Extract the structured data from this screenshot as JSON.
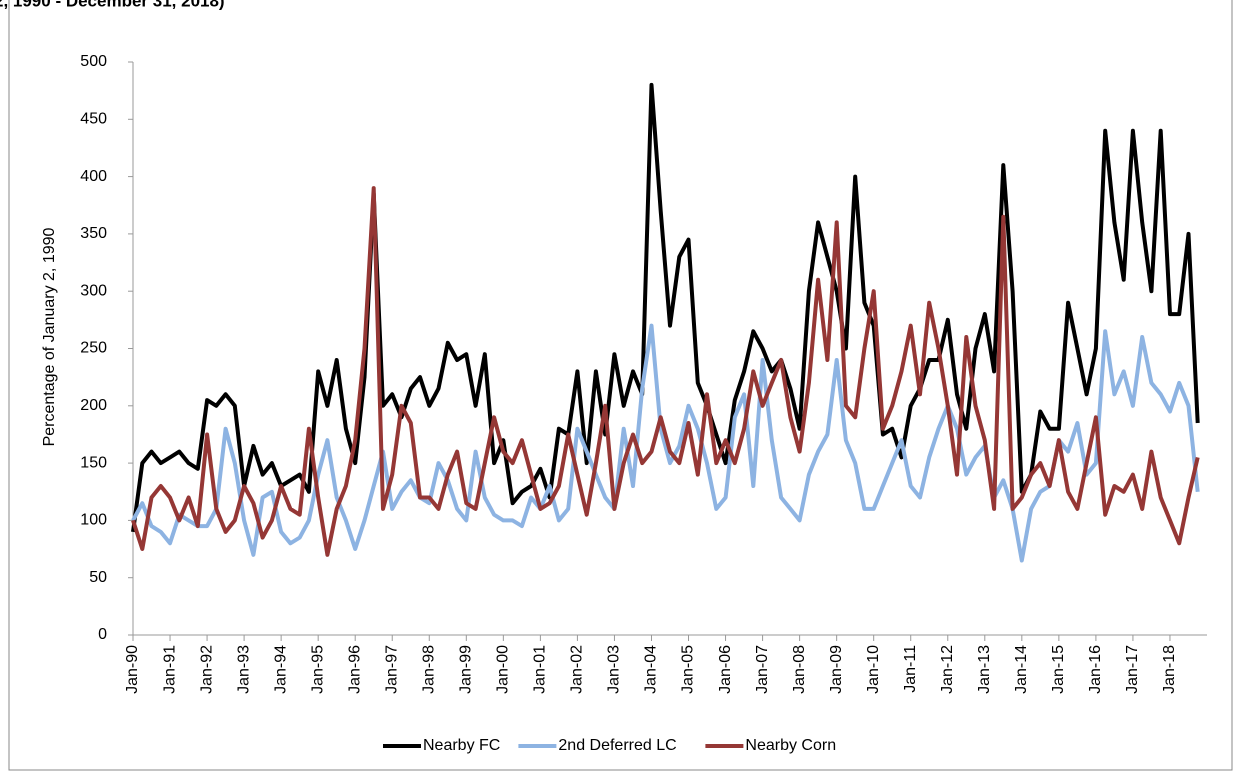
{
  "chart_data": {
    "type": "line",
    "title": "2, 1990 - December 31, 2018)",
    "y_label": "Percentage of January 2, 1990",
    "x": [
      1990,
      1990.25,
      1990.5,
      1990.75,
      1991,
      1991.25,
      1991.5,
      1991.75,
      1992,
      1992.25,
      1992.5,
      1992.75,
      1993,
      1993.25,
      1993.5,
      1993.75,
      1994,
      1994.25,
      1994.5,
      1994.75,
      1995,
      1995.25,
      1995.5,
      1995.75,
      1996,
      1996.25,
      1996.5,
      1996.75,
      1997,
      1997.25,
      1997.5,
      1997.75,
      1998,
      1998.25,
      1998.5,
      1998.75,
      1999,
      1999.25,
      1999.5,
      1999.75,
      2000,
      2000.25,
      2000.5,
      2000.75,
      2001,
      2001.25,
      2001.5,
      2001.75,
      2002,
      2002.25,
      2002.5,
      2002.75,
      2003,
      2003.25,
      2003.5,
      2003.75,
      2004,
      2004.25,
      2004.5,
      2004.75,
      2005,
      2005.25,
      2005.5,
      2005.75,
      2006,
      2006.25,
      2006.5,
      2006.75,
      2007,
      2007.25,
      2007.5,
      2007.75,
      2008,
      2008.25,
      2008.5,
      2008.75,
      2009,
      2009.25,
      2009.5,
      2009.75,
      2010,
      2010.25,
      2010.5,
      2010.75,
      2011,
      2011.25,
      2011.5,
      2011.75,
      2012,
      2012.25,
      2012.5,
      2012.75,
      2013,
      2013.25,
      2013.5,
      2013.75,
      2014,
      2014.25,
      2014.5,
      2014.75,
      2015,
      2015.25,
      2015.5,
      2015.75,
      2016,
      2016.25,
      2016.5,
      2016.75,
      2017,
      2017.25,
      2017.5,
      2017.75,
      2018,
      2018.25,
      2018.5,
      2018.75
    ],
    "series": [
      {
        "name": "Nearby FC",
        "color": "#000000",
        "values": [
          90,
          150,
          160,
          150,
          155,
          160,
          150,
          145,
          205,
          200,
          210,
          200,
          130,
          165,
          140,
          150,
          130,
          135,
          140,
          125,
          230,
          200,
          240,
          180,
          150,
          225,
          385,
          200,
          210,
          190,
          215,
          225,
          200,
          215,
          255,
          240,
          245,
          200,
          245,
          150,
          170,
          115,
          125,
          130,
          145,
          120,
          180,
          175,
          230,
          150,
          230,
          175,
          245,
          200,
          230,
          210,
          480,
          370,
          270,
          330,
          345,
          220,
          200,
          175,
          150,
          205,
          230,
          265,
          250,
          230,
          240,
          215,
          180,
          300,
          360,
          330,
          300,
          250,
          400,
          290,
          270,
          175,
          180,
          155,
          200,
          215,
          240,
          240,
          275,
          210,
          180,
          250,
          280,
          230,
          410,
          300,
          125,
          140,
          195,
          180,
          180,
          290,
          250,
          210,
          250,
          440,
          360,
          310,
          440,
          360,
          300,
          440,
          280,
          280,
          350,
          185
        ]
      },
      {
        "name": "2nd Deferred LC",
        "color": "#8db3e2",
        "values": [
          100,
          115,
          95,
          90,
          80,
          105,
          100,
          95,
          95,
          110,
          180,
          150,
          100,
          70,
          120,
          125,
          90,
          80,
          85,
          100,
          140,
          170,
          120,
          100,
          75,
          100,
          130,
          160,
          110,
          125,
          135,
          120,
          115,
          150,
          135,
          110,
          100,
          160,
          120,
          105,
          100,
          100,
          95,
          120,
          110,
          130,
          100,
          110,
          180,
          160,
          140,
          120,
          110,
          180,
          130,
          215,
          270,
          180,
          150,
          165,
          200,
          180,
          150,
          110,
          120,
          190,
          210,
          130,
          240,
          170,
          120,
          110,
          100,
          140,
          160,
          175,
          240,
          170,
          150,
          110,
          110,
          130,
          150,
          170,
          130,
          120,
          155,
          180,
          200,
          180,
          140,
          155,
          165,
          120,
          135,
          110,
          65,
          110,
          125,
          130,
          170,
          160,
          185,
          140,
          150,
          265,
          210,
          230,
          200,
          260,
          220,
          210,
          195,
          220,
          200,
          125
        ]
      },
      {
        "name": "Nearby Corn",
        "color": "#953735",
        "values": [
          100,
          75,
          120,
          130,
          120,
          100,
          120,
          95,
          175,
          110,
          90,
          100,
          130,
          115,
          85,
          100,
          130,
          110,
          105,
          180,
          120,
          70,
          110,
          130,
          170,
          250,
          390,
          110,
          140,
          200,
          185,
          120,
          120,
          110,
          140,
          160,
          115,
          110,
          150,
          190,
          160,
          150,
          170,
          140,
          110,
          115,
          130,
          175,
          140,
          105,
          150,
          200,
          110,
          150,
          175,
          150,
          160,
          190,
          160,
          150,
          185,
          140,
          210,
          150,
          170,
          150,
          180,
          230,
          200,
          220,
          240,
          190,
          160,
          220,
          310,
          240,
          360,
          200,
          190,
          250,
          300,
          180,
          200,
          230,
          270,
          210,
          290,
          250,
          200,
          140,
          260,
          200,
          170,
          110,
          365,
          110,
          120,
          140,
          150,
          130,
          170,
          125,
          110,
          150,
          190,
          105,
          130,
          125,
          140,
          110,
          160,
          120,
          100,
          80,
          120,
          155
        ]
      }
    ],
    "xlim": [
      1990,
      2019
    ],
    "xticks": [
      {
        "value": 1990,
        "label": "Jan-90"
      },
      {
        "value": 1991,
        "label": "Jan-91"
      },
      {
        "value": 1992,
        "label": "Jan-92"
      },
      {
        "value": 1993,
        "label": "Jan-93"
      },
      {
        "value": 1994,
        "label": "Jan-94"
      },
      {
        "value": 1995,
        "label": "Jan-95"
      },
      {
        "value": 1996,
        "label": "Jan-96"
      },
      {
        "value": 1997,
        "label": "Jan-97"
      },
      {
        "value": 1998,
        "label": "Jan-98"
      },
      {
        "value": 1999,
        "label": "Jan-99"
      },
      {
        "value": 2000,
        "label": "Jan-00"
      },
      {
        "value": 2001,
        "label": "Jan-01"
      },
      {
        "value": 2002,
        "label": "Jan-02"
      },
      {
        "value": 2003,
        "label": "Jan-03"
      },
      {
        "value": 2004,
        "label": "Jan-04"
      },
      {
        "value": 2005,
        "label": "Jan-05"
      },
      {
        "value": 2006,
        "label": "Jan-06"
      },
      {
        "value": 2007,
        "label": "Jan-07"
      },
      {
        "value": 2008,
        "label": "Jan-08"
      },
      {
        "value": 2009,
        "label": "Jan-09"
      },
      {
        "value": 2010,
        "label": "Jan-10"
      },
      {
        "value": 2011,
        "label": "Jan-11"
      },
      {
        "value": 2012,
        "label": "Jan-12"
      },
      {
        "value": 2013,
        "label": "Jan-13"
      },
      {
        "value": 2014,
        "label": "Jan-14"
      },
      {
        "value": 2015,
        "label": "Jan-15"
      },
      {
        "value": 2016,
        "label": "Jan-16"
      },
      {
        "value": 2017,
        "label": "Jan-17"
      },
      {
        "value": 2018,
        "label": "Jan-18"
      }
    ],
    "ylim": [
      0,
      500
    ],
    "yticks": [
      0,
      50,
      100,
      150,
      200,
      250,
      300,
      350,
      400,
      450,
      500
    ],
    "grid": false,
    "legend": "bottom"
  }
}
